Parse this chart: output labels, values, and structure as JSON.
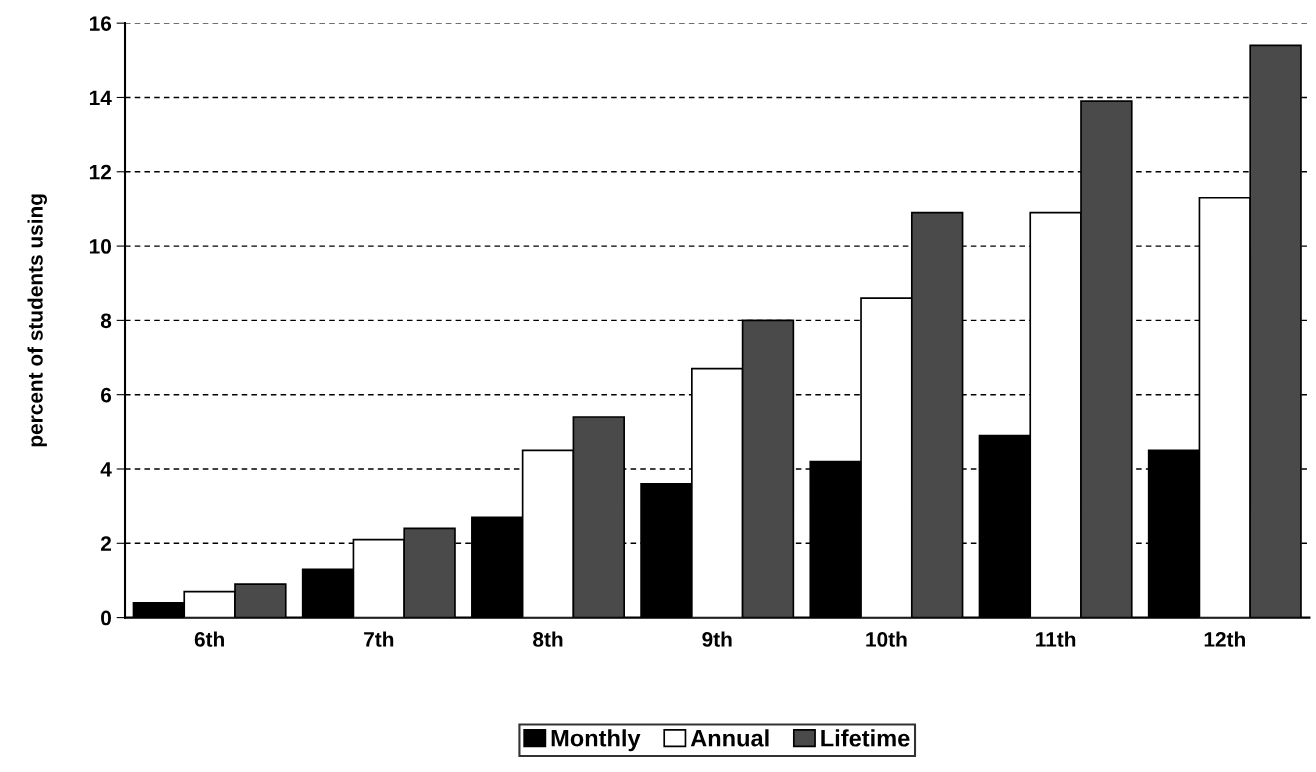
{
  "chart_data": {
    "type": "bar",
    "ylabel": "percent of students using",
    "categories": [
      "6th",
      "7th",
      "8th",
      "9th",
      "10th",
      "11th",
      "12th"
    ],
    "series": [
      {
        "name": "Monthly",
        "color": "#000000",
        "values": [
          0.4,
          1.3,
          2.7,
          3.6,
          4.2,
          4.9,
          4.5
        ]
      },
      {
        "name": "Annual",
        "color": "#ffffff",
        "values": [
          0.7,
          2.1,
          4.5,
          6.7,
          8.6,
          10.9,
          11.3
        ]
      },
      {
        "name": "Lifetime",
        "color": "#4a4a4a",
        "values": [
          0.9,
          2.4,
          5.4,
          8.0,
          10.9,
          13.9,
          15.4
        ]
      }
    ],
    "ylim": [
      0,
      16
    ],
    "yticks": [
      0,
      2,
      4,
      6,
      8,
      10,
      12,
      14,
      16
    ],
    "grid": "y",
    "legend": "bottom"
  }
}
